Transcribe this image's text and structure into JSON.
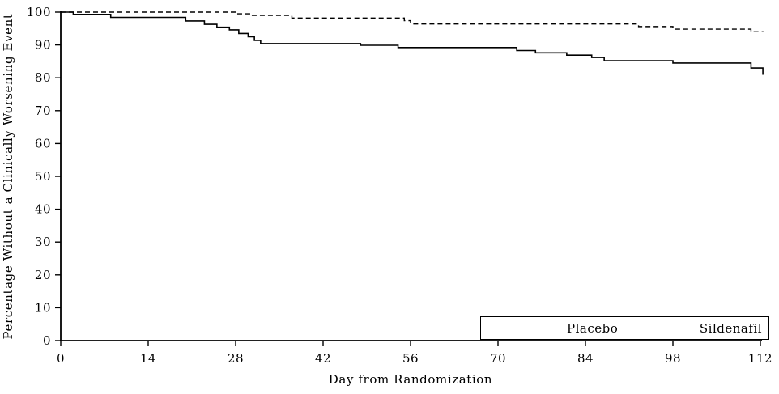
{
  "chart_data": {
    "type": "line",
    "subtype": "kaplan-meier-step",
    "title": "",
    "xlabel": "Day from Randomization",
    "ylabel": "Percentage Without a Clinically Worsening Event",
    "xlim": [
      0,
      112
    ],
    "ylim": [
      0,
      100
    ],
    "x_ticks": [
      0,
      14,
      28,
      42,
      56,
      70,
      84,
      98,
      112
    ],
    "y_ticks": [
      0,
      10,
      20,
      30,
      40,
      50,
      60,
      70,
      80,
      90,
      100
    ],
    "grid": false,
    "legend_position": "bottom-right-inside",
    "background_color": "#ffffff",
    "axis_color": "#000000",
    "series": [
      {
        "name": "Placebo",
        "line_style": "solid",
        "color": "#000000",
        "points": [
          [
            0,
            100
          ],
          [
            2,
            99.3
          ],
          [
            8,
            98.4
          ],
          [
            20,
            97.3
          ],
          [
            23,
            96.3
          ],
          [
            25,
            95.4
          ],
          [
            27,
            94.6
          ],
          [
            28.5,
            93.5
          ],
          [
            30,
            92.5
          ],
          [
            31,
            91.4
          ],
          [
            32,
            90.4
          ],
          [
            48,
            89.9
          ],
          [
            54,
            89.2
          ],
          [
            73,
            88.3
          ],
          [
            76,
            87.6
          ],
          [
            81,
            86.9
          ],
          [
            85,
            86.2
          ],
          [
            87,
            85.2
          ],
          [
            98,
            84.5
          ],
          [
            110.5,
            83.0
          ],
          [
            112.4,
            80.9
          ]
        ]
      },
      {
        "name": "Sildenafil",
        "line_style": "dashed",
        "color": "#000000",
        "points": [
          [
            0,
            100
          ],
          [
            28,
            99.5
          ],
          [
            30.5,
            99.0
          ],
          [
            37,
            98.2
          ],
          [
            55,
            97.4
          ],
          [
            56,
            96.4
          ],
          [
            92.5,
            95.6
          ],
          [
            98,
            94.8
          ],
          [
            110.5,
            94.0
          ],
          [
            112.5,
            94.0
          ]
        ]
      }
    ]
  }
}
